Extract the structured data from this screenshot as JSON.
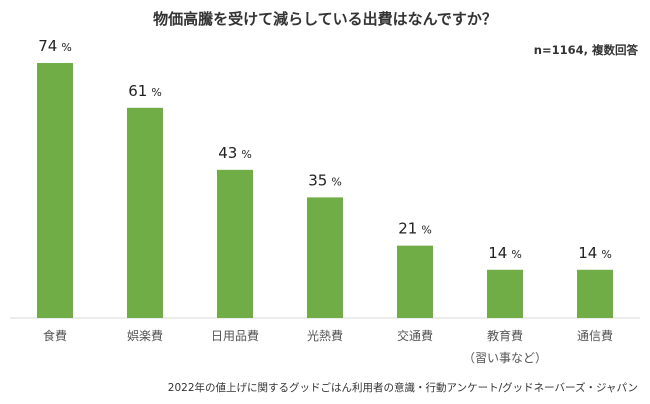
{
  "chart_data": {
    "type": "bar",
    "title": "物価高騰を受けて減らしている出費はなんですか？",
    "sample_note": "n=1164, 複数回答",
    "source": "2022年の値上げに関するグッドごはん利用者の意識・行動アンケート/グッドネーバーズ・ジャパン",
    "unit": "%",
    "categories": [
      "食費",
      "娯楽費",
      "日用品費",
      "光熱費",
      "交通費",
      "教育費",
      "通信費"
    ],
    "category_sublabels": [
      "",
      "",
      "",
      "",
      "",
      "（習い事など）",
      ""
    ],
    "values": [
      74,
      61,
      43,
      35,
      21,
      14,
      14
    ],
    "ylim": [
      0,
      80
    ],
    "grid": false,
    "bar_color": "#70ad47"
  }
}
